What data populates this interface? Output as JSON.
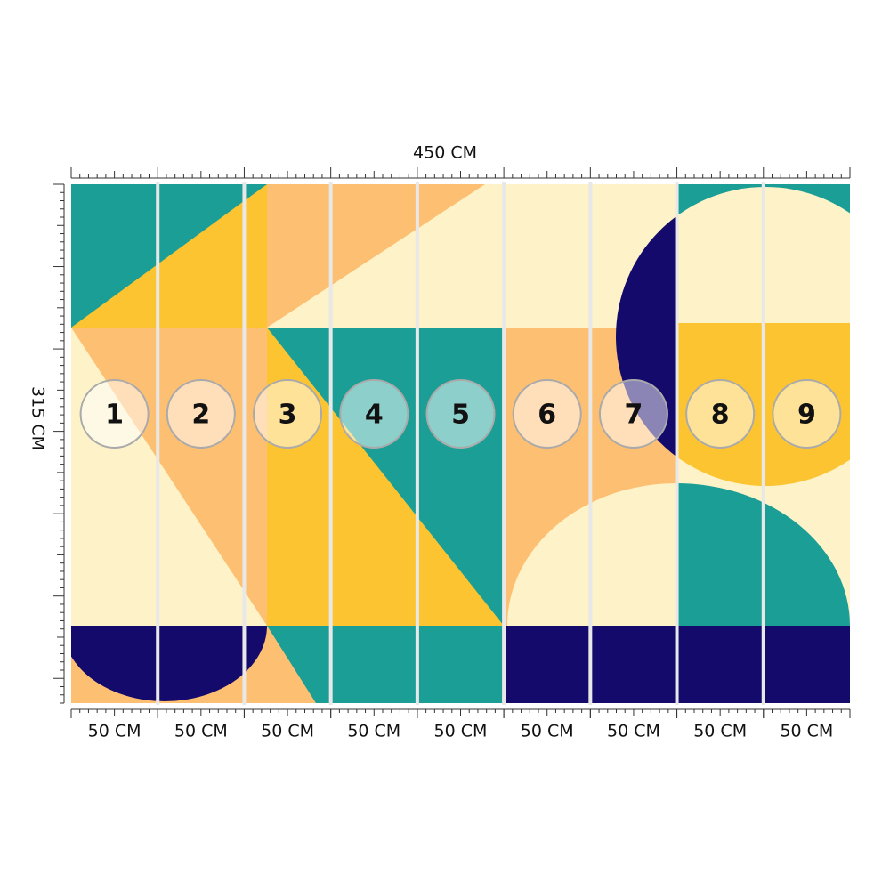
{
  "width_label": "450 CM",
  "height_label": "315 CM",
  "panels": [
    {
      "number": "1",
      "width": "50 CM"
    },
    {
      "number": "2",
      "width": "50 CM"
    },
    {
      "number": "3",
      "width": "50 CM"
    },
    {
      "number": "4",
      "width": "50 CM"
    },
    {
      "number": "5",
      "width": "50 CM"
    },
    {
      "number": "6",
      "width": "50 CM"
    },
    {
      "number": "7",
      "width": "50 CM"
    },
    {
      "number": "8",
      "width": "50 CM"
    },
    {
      "number": "9",
      "width": "50 CM"
    }
  ]
}
